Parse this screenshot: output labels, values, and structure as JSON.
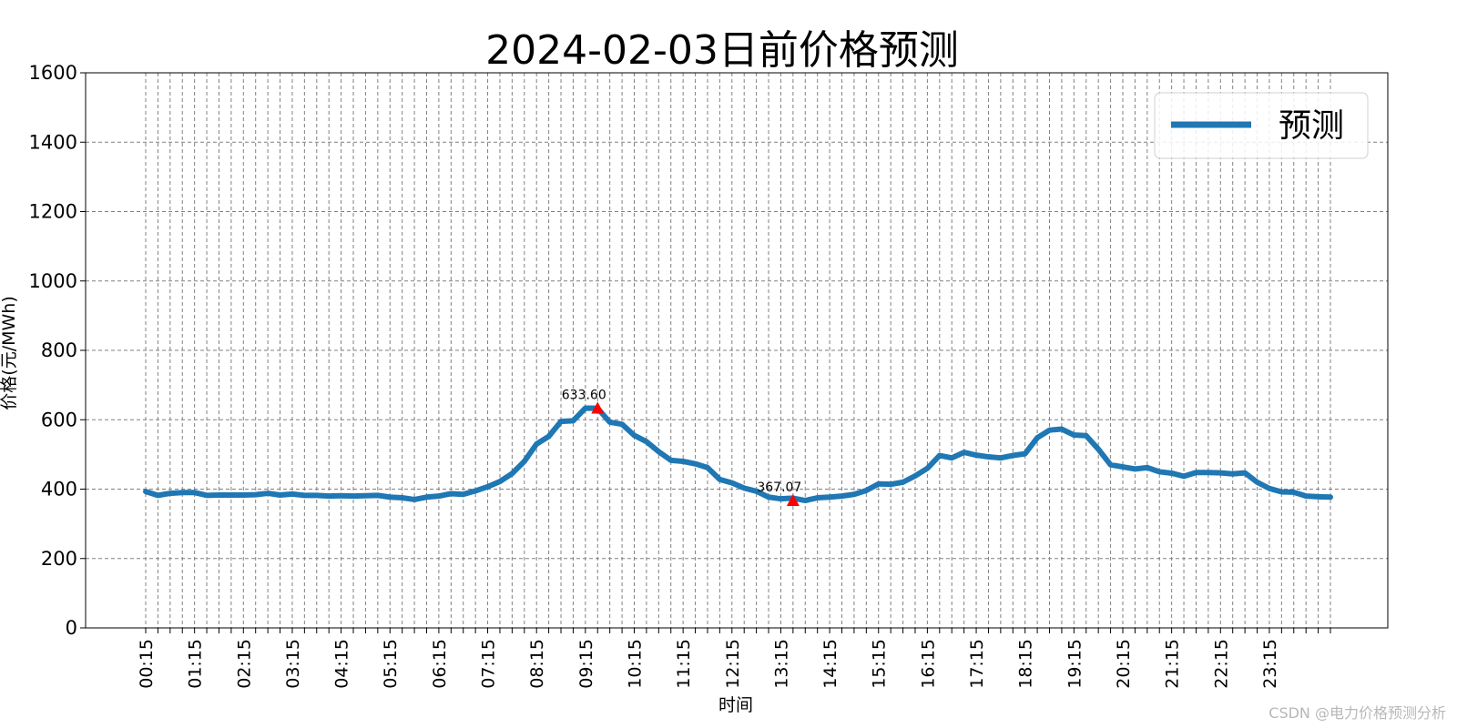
{
  "chart_data": {
    "type": "line",
    "title": "2024-02-03日前价格预测",
    "xlabel": "时间",
    "ylabel": "价格(元/MWh)",
    "ylim": [
      0,
      1600
    ],
    "yticks": [
      0,
      200,
      400,
      600,
      800,
      1000,
      1200,
      1400,
      1600
    ],
    "grid": true,
    "legend_position": "top-right",
    "x_tick_labels": [
      "00:15",
      "01:15",
      "02:15",
      "03:15",
      "04:15",
      "05:15",
      "06:15",
      "07:15",
      "08:15",
      "09:15",
      "10:15",
      "11:15",
      "12:15",
      "13:15",
      "14:15",
      "15:15",
      "16:15",
      "17:15",
      "18:15",
      "19:15",
      "20:15",
      "21:15",
      "22:15",
      "23:15"
    ],
    "series": [
      {
        "name": "预测",
        "color": "#1f77b4",
        "values": [
          393,
          382,
          388,
          390,
          390,
          382,
          383,
          383,
          383,
          384,
          388,
          383,
          386,
          382,
          382,
          380,
          381,
          380,
          381,
          382,
          377,
          375,
          370,
          377,
          380,
          387,
          385,
          395,
          407,
          422,
          445,
          480,
          530,
          552,
          595,
          597,
          633.6,
          633,
          593,
          587,
          555,
          537,
          508,
          483,
          480,
          473,
          462,
          428,
          418,
          403,
          394,
          377,
          372,
          374,
          367.07,
          375,
          377,
          380,
          385,
          396,
          415,
          414,
          420,
          438,
          460,
          497,
          490,
          506,
          498,
          493,
          490,
          497,
          502,
          548,
          570,
          573,
          556,
          554,
          515,
          470,
          464,
          458,
          462,
          450,
          446,
          437,
          448,
          448,
          447,
          444,
          447,
          420,
          402,
          392,
          391,
          380,
          378,
          377
        ]
      }
    ],
    "annotations": [
      {
        "label": "633.60",
        "index": 37,
        "value": 633.6,
        "marker": "max"
      },
      {
        "label": "367.07",
        "index": 53,
        "value": 367.07,
        "marker": "min"
      }
    ],
    "marker_color": "#ff0000"
  },
  "watermark": "CSDN @电力价格预测分析"
}
